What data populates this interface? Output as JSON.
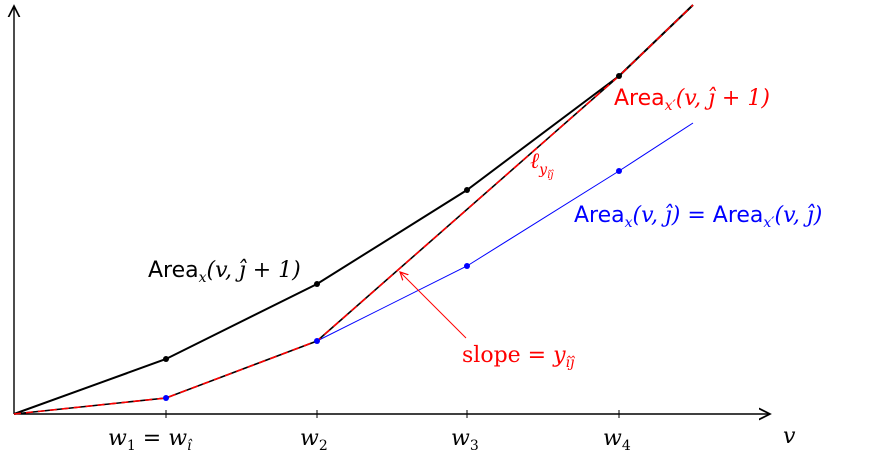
{
  "axes": {
    "x_label": "v",
    "ticks": [
      {
        "base": "w",
        "sub": "1",
        "suffix": " = ",
        "base2": "w",
        "sub2": "î"
      },
      {
        "base": "w",
        "sub": "2"
      },
      {
        "base": "w",
        "sub": "3"
      },
      {
        "base": "w",
        "sub": "4"
      }
    ]
  },
  "labels": {
    "area_upper": {
      "sf": "Area",
      "sub": "x",
      "rest": "(v, ĵ + 1)"
    },
    "area_xprime": {
      "sf": "Area",
      "sub": "x′",
      "rest": "(v, ĵ + 1)"
    },
    "area_lower_left": {
      "sf": "Area",
      "sub": "x",
      "rest": "(v, ĵ) = "
    },
    "area_lower_right": {
      "sf": "Area",
      "sub": "x′",
      "rest": "(v, ĵ)"
    },
    "ell": {
      "base": "ℓ",
      "sub": "y",
      "subsub": "îĵ"
    },
    "slope": {
      "text": "slope = ",
      "base": "y",
      "sub": "îĵ"
    }
  },
  "colors": {
    "black": "#000000",
    "red": "#ff0000",
    "blue": "#0000ff"
  }
}
